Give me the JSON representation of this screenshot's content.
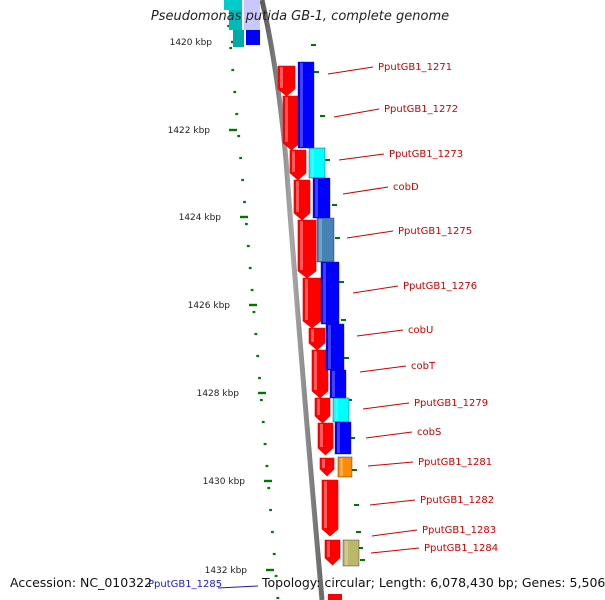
{
  "title": "Pseudomonas putida GB-1, complete genome",
  "footer": {
    "accession": "Accession: NC_010322",
    "summary": "Topology: circular; Length: 6,078,430 bp; Genes: 5,506",
    "lower_gene_label": "PputGB1_1285"
  },
  "ruler": {
    "labels": [
      "1420 kbp",
      "1422 kbp",
      "1424 kbp",
      "1426 kbp",
      "1428 kbp",
      "1430 kbp",
      "1432 kbp"
    ]
  },
  "genes": [
    {
      "name": "PputGB1_1271",
      "strand": "reverse",
      "outer_color": "#ff0000",
      "inner_color": "#0000ff"
    },
    {
      "name": "PputGB1_1272",
      "strand": "reverse",
      "outer_color": "#ff0000",
      "inner_color": "#0000ff"
    },
    {
      "name": "PputGB1_1273",
      "strand": "reverse",
      "outer_color": "#ff0000",
      "inner_color": "#00ffff"
    },
    {
      "name": "cobD",
      "strand": "reverse",
      "outer_color": "#ff0000",
      "inner_color": "#0000ff"
    },
    {
      "name": "PputGB1_1275",
      "strand": "reverse",
      "outer_color": "#ff0000",
      "inner_color": "#4682b4"
    },
    {
      "name": "PputGB1_1276",
      "strand": "reverse",
      "outer_color": "#ff0000",
      "inner_color": "#0000ff"
    },
    {
      "name": "cobU",
      "strand": "reverse",
      "outer_color": "#ff0000",
      "inner_color": "#0000ff"
    },
    {
      "name": "cobT",
      "strand": "reverse",
      "outer_color": "#ff0000",
      "inner_color": "#0000ff"
    },
    {
      "name": "PputGB1_1279",
      "strand": "reverse",
      "outer_color": "#ff0000",
      "inner_color": "#00ffff"
    },
    {
      "name": "cobS",
      "strand": "reverse",
      "outer_color": "#ff0000",
      "inner_color": "#0000ff"
    },
    {
      "name": "PputGB1_1281",
      "strand": "reverse",
      "outer_color": "#ff0000",
      "inner_color": "#ff8c00"
    },
    {
      "name": "PputGB1_1282",
      "strand": "reverse",
      "outer_color": "#ff0000",
      "inner_color": ""
    },
    {
      "name": "PputGB1_1283",
      "strand": "reverse",
      "outer_color": "#ff0000",
      "inner_color": ""
    },
    {
      "name": "PputGB1_1284",
      "strand": "forward",
      "outer_color": "#ff0000",
      "inner_color": "#bdb76b"
    }
  ],
  "colors": {
    "gene_label": "#cc0000",
    "leader_line": "#cc0000",
    "ruler_tick": "#007700",
    "backbone": "#8c8c8c",
    "footer_gene_label": "#1a1acc"
  }
}
